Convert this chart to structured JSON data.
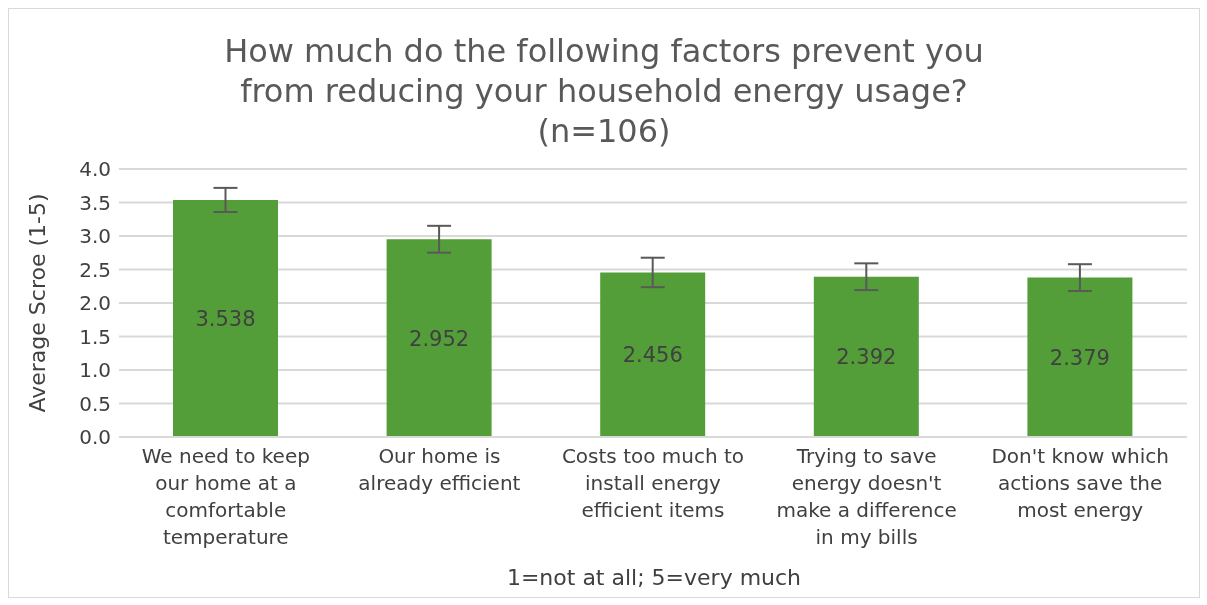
{
  "chart_data": {
    "type": "bar",
    "title": "How much do the following factors prevent you from reducing your household energy usage? (n=106)",
    "xlabel": "1=not at all; 5=very much",
    "ylabel": "Average Scroe (1-5)",
    "categories": [
      "We need to keep our home at a comfortable temperature",
      "Our home is already efficient",
      "Costs too much to install energy efficient items",
      "Trying to save energy doesn't make a difference in my bills",
      "Don't know which actions save the most energy"
    ],
    "values": [
      3.538,
      2.952,
      2.456,
      2.392,
      2.379
    ],
    "errors": [
      0.18,
      0.2,
      0.22,
      0.2,
      0.2
    ],
    "color": "#549e39",
    "ylim": [
      0,
      4
    ],
    "yticks": [
      {
        "value": 0,
        "label": "0.0"
      },
      {
        "value": 0.5,
        "label": "0.5"
      },
      {
        "value": 1,
        "label": "1.0"
      },
      {
        "value": 1.5,
        "label": "1.5"
      },
      {
        "value": 2,
        "label": "2.0"
      },
      {
        "value": 2.5,
        "label": "2.5"
      },
      {
        "value": 3,
        "label": "3.0"
      },
      {
        "value": 3.5,
        "label": "3.5"
      },
      {
        "value": 4,
        "label": "4.0"
      }
    ],
    "grid": "y",
    "data_labels": true,
    "legend": false
  }
}
